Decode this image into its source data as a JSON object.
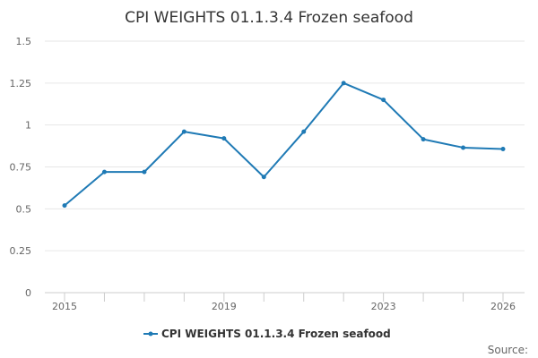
{
  "chart_data": {
    "type": "line",
    "title": "CPI WEIGHTS 01.1.3.4 Frozen seafood",
    "xlabel": "",
    "ylabel": "",
    "x": [
      2015,
      2016,
      2017,
      2018,
      2019,
      2020,
      2021,
      2022,
      2023,
      2024,
      2025,
      2026
    ],
    "x_tick_labels": [
      "2015",
      "2019",
      "2023",
      "2026"
    ],
    "x_tick_values": [
      2015,
      2019,
      2023,
      2026
    ],
    "ylim": [
      0,
      1.5
    ],
    "y_ticks": [
      {
        "value": 0,
        "label": "0"
      },
      {
        "value": 0.25,
        "label": "0.25"
      },
      {
        "value": 0.5,
        "label": "0.5"
      },
      {
        "value": 0.75,
        "label": "0.75"
      },
      {
        "value": 1,
        "label": "1"
      },
      {
        "value": 1.25,
        "label": "1.25"
      },
      {
        "value": 1.5,
        "label": "1.5"
      }
    ],
    "series": [
      {
        "name": "CPI WEIGHTS 01.1.3.4 Frozen seafood",
        "color": "#1f7ab5",
        "values": [
          0.52,
          0.72,
          0.72,
          0.96,
          0.92,
          0.69,
          0.96,
          1.25,
          1.15,
          0.915,
          0.865,
          0.857
        ]
      }
    ],
    "grid": true,
    "legend": "bottom-center"
  },
  "source_label": "Source:"
}
